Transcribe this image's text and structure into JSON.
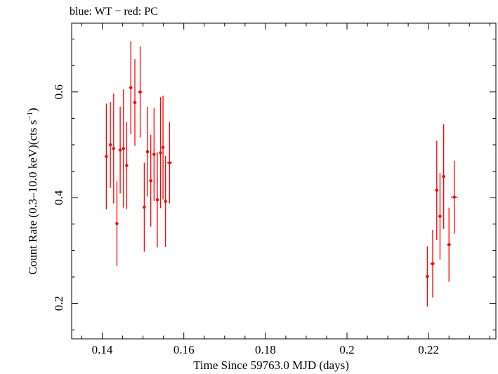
{
  "chart_data": {
    "type": "scatter",
    "title": "blue: WT − red: PC",
    "xlabel": "Time Since 59763.0 MJD (days)",
    "ylabel_main": "Count Rate (0.3–10.0 keV)(cts s",
    "ylabel_sup": "−1",
    "ylabel_end": ")",
    "xlim": [
      0.1325,
      0.2365
    ],
    "ylim": [
      0.133,
      0.73
    ],
    "x_ticks": [
      0.14,
      0.16,
      0.18,
      0.2,
      0.22
    ],
    "x_tick_labels": [
      "0.14",
      "0.16",
      "0.18",
      "0.2",
      "0.22"
    ],
    "y_ticks": [
      0.2,
      0.4,
      0.6
    ],
    "y_tick_labels": [
      "0.2",
      "0.4",
      "0.6"
    ],
    "series": [
      {
        "color": "#ff0000",
        "points": [
          {
            "x": 0.141,
            "xerr": 0.0003,
            "y": 0.478,
            "yerr": 0.1
          },
          {
            "x": 0.142,
            "xerr": 0.0003,
            "y": 0.5,
            "yerr": 0.081
          },
          {
            "x": 0.1428,
            "xerr": 0.0003,
            "y": 0.493,
            "yerr": 0.104
          },
          {
            "x": 0.1436,
            "xerr": 0.0003,
            "y": 0.351,
            "yerr": 0.08
          },
          {
            "x": 0.1444,
            "xerr": 0.0003,
            "y": 0.49,
            "yerr": 0.082
          },
          {
            "x": 0.1452,
            "xerr": 0.0003,
            "y": 0.493,
            "yerr": 0.112
          },
          {
            "x": 0.146,
            "xerr": 0.0003,
            "y": 0.461,
            "yerr": 0.082
          },
          {
            "x": 0.147,
            "xerr": 0.0004,
            "y": 0.608,
            "yerr": 0.088
          },
          {
            "x": 0.148,
            "xerr": 0.0004,
            "y": 0.58,
            "yerr": 0.082
          },
          {
            "x": 0.1493,
            "xerr": 0.0005,
            "y": 0.6,
            "yerr": 0.086
          },
          {
            "x": 0.1503,
            "xerr": 0.0003,
            "y": 0.382,
            "yerr": 0.084
          },
          {
            "x": 0.1511,
            "xerr": 0.0003,
            "y": 0.487,
            "yerr": 0.085
          },
          {
            "x": 0.1519,
            "xerr": 0.0003,
            "y": 0.432,
            "yerr": 0.087
          },
          {
            "x": 0.1527,
            "xerr": 0.0003,
            "y": 0.482,
            "yerr": 0.088
          },
          {
            "x": 0.1535,
            "xerr": 0.0003,
            "y": 0.396,
            "yerr": 0.09
          },
          {
            "x": 0.1543,
            "xerr": 0.0003,
            "y": 0.485,
            "yerr": 0.105
          },
          {
            "x": 0.1549,
            "xerr": 0.0003,
            "y": 0.495,
            "yerr": 0.098
          },
          {
            "x": 0.1555,
            "xerr": 0.0003,
            "y": 0.393,
            "yerr": 0.086
          },
          {
            "x": 0.1565,
            "xerr": 0.0006,
            "y": 0.466,
            "yerr": 0.077
          },
          {
            "x": 0.2197,
            "xerr": 0.0004,
            "y": 0.251,
            "yerr": 0.057
          },
          {
            "x": 0.221,
            "xerr": 0.0006,
            "y": 0.275,
            "yerr": 0.064
          },
          {
            "x": 0.222,
            "xerr": 0.0003,
            "y": 0.414,
            "yerr": 0.094
          },
          {
            "x": 0.2228,
            "xerr": 0.0003,
            "y": 0.365,
            "yerr": 0.082
          },
          {
            "x": 0.2237,
            "xerr": 0.0003,
            "y": 0.44,
            "yerr": 0.099
          },
          {
            "x": 0.225,
            "xerr": 0.0005,
            "y": 0.311,
            "yerr": 0.07
          },
          {
            "x": 0.2263,
            "xerr": 0.0008,
            "y": 0.401,
            "yerr": 0.069
          }
        ]
      }
    ],
    "grid": false,
    "legend": "none"
  }
}
